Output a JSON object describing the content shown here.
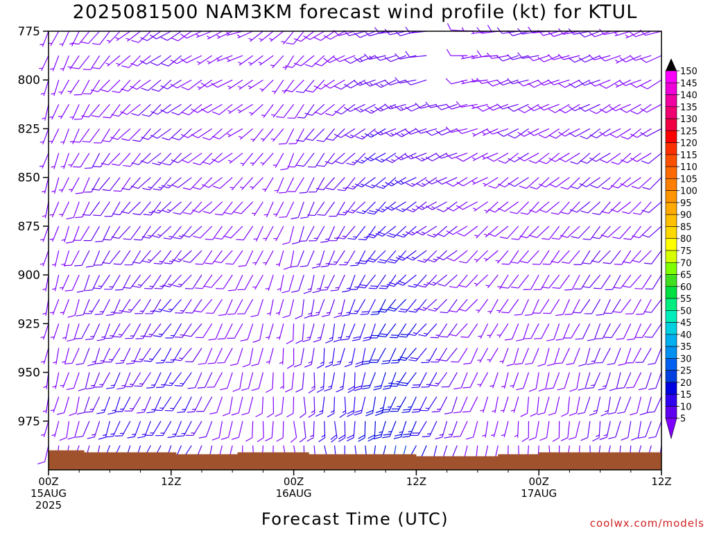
{
  "chart_data": {
    "type": "wind-barb time-height cross-section",
    "title": "2025081500 NAM3KM forecast wind profile (kt) for KTUL",
    "xlabel": "Forecast Time (UTC)",
    "ylabel": "",
    "credit": "coolwx.com/models",
    "y_axis": {
      "range": [
        775,
        1000
      ],
      "inverted": true,
      "ticks": [
        "775",
        "800",
        "825",
        "850",
        "875",
        "900",
        "925",
        "950",
        "975"
      ]
    },
    "x_axis": {
      "range_hours": [
        0,
        60
      ],
      "ticks": [
        {
          "hour": 0,
          "line1": "00Z",
          "line2": "15AUG",
          "line3": "2025"
        },
        {
          "hour": 12,
          "line1": "12Z",
          "line2": "",
          "line3": ""
        },
        {
          "hour": 24,
          "line1": "00Z",
          "line2": "16AUG",
          "line3": ""
        },
        {
          "hour": 36,
          "line1": "12Z",
          "line2": "",
          "line3": ""
        },
        {
          "hour": 48,
          "line1": "00Z",
          "line2": "17AUG",
          "line3": ""
        },
        {
          "hour": 60,
          "line1": "12Z",
          "line2": "",
          "line3": ""
        }
      ]
    },
    "surface_pressure": [
      {
        "hour": 0,
        "hPa": 990
      },
      {
        "hour": 3.5,
        "hPa": 991
      },
      {
        "hour": 9,
        "hPa": 991
      },
      {
        "hour": 12.5,
        "hPa": 992
      },
      {
        "hour": 18.5,
        "hPa": 991
      },
      {
        "hour": 24,
        "hPa": 991
      },
      {
        "hour": 25.5,
        "hPa": 992
      },
      {
        "hour": 35,
        "hPa": 992
      },
      {
        "hour": 36,
        "hPa": 993
      },
      {
        "hour": 44,
        "hPa": 992
      },
      {
        "hour": 48,
        "hPa": 991
      },
      {
        "hour": 54,
        "hPa": 991
      },
      {
        "hour": 60,
        "hPa": 990
      }
    ],
    "wind_barbs": {
      "time_step_hours": 1,
      "levels_hPa": [
        775,
        787.5,
        800,
        812.5,
        825,
        837.5,
        850,
        862.5,
        875,
        887.5,
        900,
        912.5,
        925,
        937.5,
        950,
        962.5,
        975,
        987.5
      ],
      "missing_segments": [
        {
          "start_hour": 38,
          "end_hour": 40,
          "top_hPa": 775,
          "bottom_hPa": 800
        }
      ],
      "keyframes": [
        {
          "hour": 0,
          "upper": {
            "dir": 200,
            "spd": 5
          },
          "lower": {
            "dir": 190,
            "spd": 7
          }
        },
        {
          "hour": 8,
          "upper": {
            "dir": 230,
            "spd": 8
          },
          "lower": {
            "dir": 200,
            "spd": 18
          }
        },
        {
          "hour": 14,
          "upper": {
            "dir": 240,
            "spd": 10
          },
          "lower": {
            "dir": 205,
            "spd": 16
          }
        },
        {
          "hour": 19,
          "upper": {
            "dir": 250,
            "spd": 5
          },
          "lower": {
            "dir": 180,
            "spd": 8
          }
        },
        {
          "hour": 24,
          "upper": {
            "dir": 220,
            "spd": 7
          },
          "lower": {
            "dir": 170,
            "spd": 10
          }
        },
        {
          "hour": 30,
          "upper": {
            "dir": 250,
            "spd": 10
          },
          "lower": {
            "dir": 170,
            "spd": 22
          }
        },
        {
          "hour": 36,
          "upper": {
            "dir": 260,
            "spd": 12
          },
          "lower": {
            "dir": 200,
            "spd": 26
          }
        },
        {
          "hour": 41,
          "upper": {
            "dir": 270,
            "spd": 8
          },
          "lower": {
            "dir": 190,
            "spd": 8
          }
        },
        {
          "hour": 47,
          "upper": {
            "dir": 260,
            "spd": 10
          },
          "lower": {
            "dir": 175,
            "spd": 6
          }
        },
        {
          "hour": 53,
          "upper": {
            "dir": 255,
            "spd": 9
          },
          "lower": {
            "dir": 180,
            "spd": 12
          }
        },
        {
          "hour": 60,
          "upper": {
            "dir": 250,
            "spd": 8
          },
          "lower": {
            "dir": 190,
            "spd": 12
          }
        }
      ]
    },
    "colorbar": {
      "units": "kt",
      "labels": [
        "150",
        "145",
        "140",
        "135",
        "130",
        "125",
        "120",
        "115",
        "110",
        "105",
        "100",
        "95",
        "90",
        "85",
        "80",
        "75",
        "70",
        "65",
        "60",
        "55",
        "50",
        "45",
        "40",
        "35",
        "30",
        "25",
        "20",
        "15",
        "10",
        "5"
      ],
      "colors": [
        "#ff00ff",
        "#f000d8",
        "#f000a0",
        "#f00070",
        "#f00040",
        "#ff0000",
        "#ff3000",
        "#ff5000",
        "#ff6a00",
        "#ff7f00",
        "#ff9500",
        "#ffaa00",
        "#ffc000",
        "#ffd800",
        "#ffff00",
        "#d8ff00",
        "#80ff00",
        "#40e020",
        "#00e040",
        "#00ee80",
        "#00eebb",
        "#00d0e0",
        "#00b0f0",
        "#0090f0",
        "#0060f0",
        "#0040e0",
        "#0000e0",
        "#3000f0",
        "#6000f0",
        "#8000ff"
      ]
    },
    "colors": {
      "surface_fill": "#a0522d",
      "frame": "#000000",
      "credit": "#d02020"
    }
  }
}
